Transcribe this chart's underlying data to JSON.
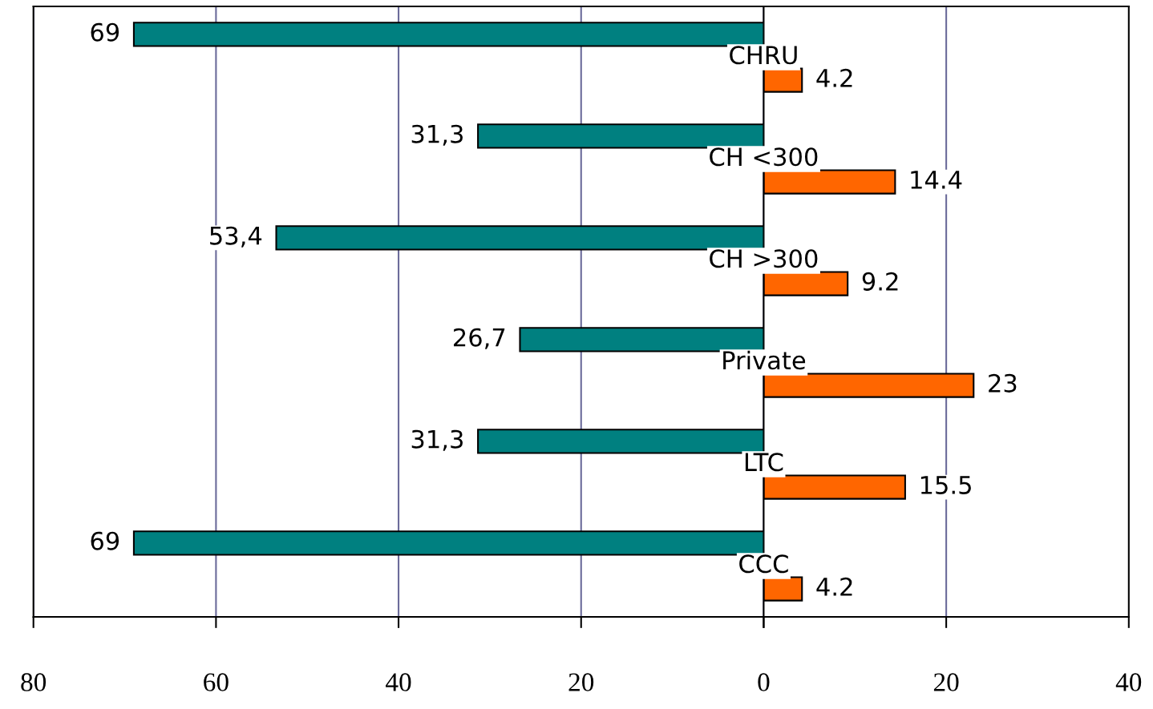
{
  "chart_data": [
    {
      "type": "bar",
      "orientation": "horizontal",
      "categories": [
        "CHRU",
        "CH <300",
        "CH >300",
        "Private",
        "LTC",
        "CCC"
      ],
      "series": [
        {
          "color": "#008080",
          "values": [
            69,
            31.3,
            53.4,
            26.7,
            31.3,
            69
          ],
          "value_labels": [
            "69",
            "31,3",
            "53,4",
            "26,7",
            "31,3",
            "69"
          ]
        }
      ],
      "xlim": [
        80,
        0
      ],
      "xticks": [
        80,
        60,
        40,
        20,
        0
      ],
      "grid": "x"
    },
    {
      "type": "bar",
      "orientation": "horizontal",
      "categories": [
        null,
        null,
        null,
        null,
        null,
        null
      ],
      "series": [
        {
          "color": "#ff6600",
          "values": [
            4.2,
            14.4,
            9.2,
            23,
            15.5,
            4.2
          ]
        }
      ],
      "xlim": [
        0,
        40
      ],
      "xticks": [
        {
          "value": 0,
          "label": null
        },
        20,
        40
      ],
      "data_labels": true,
      "ref_lines": [
        {
          "axis": "x",
          "value": 20,
          "color": "#6b6b9a"
        }
      ]
    }
  ]
}
